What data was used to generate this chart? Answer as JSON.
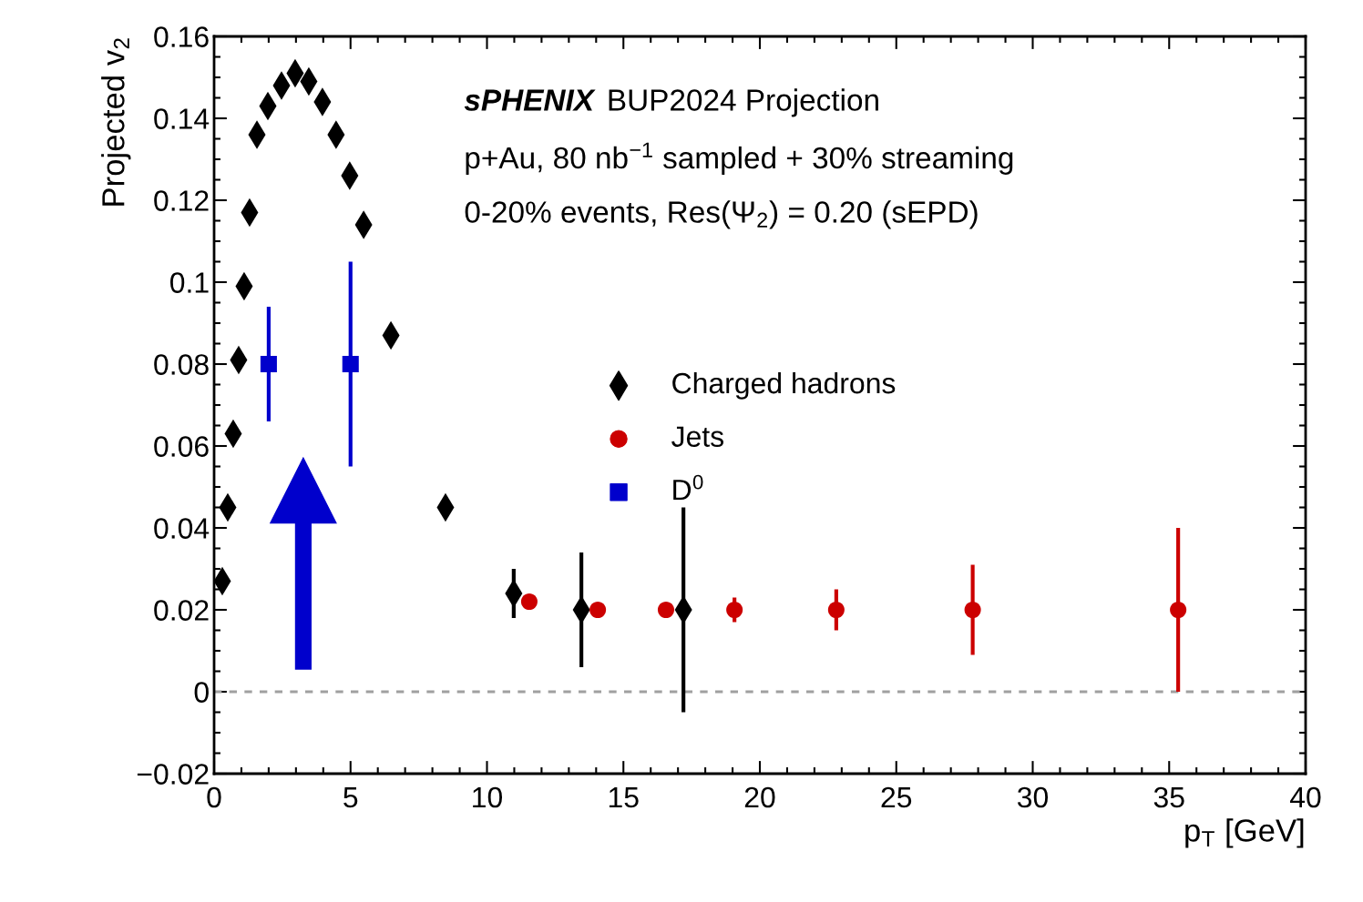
{
  "chart_data": {
    "type": "scatter",
    "xlabel": "p$_{T}$ [GeV]",
    "ylabel": "Projected v$_{2}$",
    "xlim": [
      0,
      40
    ],
    "xticks": [
      0,
      5,
      10,
      15,
      20,
      25,
      30,
      35,
      40
    ],
    "ylim": [
      -0.02,
      0.16
    ],
    "yticks": [
      {
        "value": -0.02,
        "label": "−0.02"
      },
      0,
      0.02,
      0.04,
      0.06,
      0.08,
      0.1,
      0.12,
      0.14,
      0.16
    ],
    "annotations": [
      "sPHENIX",
      "BUP2024 Projection",
      "p+Au, 80 nb$^{−1}$ sampled + 30% streaming",
      "0-20% events, Res(Ψ$_{2}$) = 0.20 (sEPD)"
    ],
    "ref_lines": [
      {
        "axis": "y",
        "value": 0,
        "color": "#a0a0a0",
        "line_style": "dashed"
      }
    ],
    "legend": "right",
    "grid": false,
    "series": [
      {
        "name": "Charged hadrons",
        "color": "#000000",
        "marker": "diamond",
        "x": [
          0.3,
          0.5,
          0.7,
          0.9,
          1.1,
          1.3,
          1.57,
          1.97,
          2.47,
          2.97,
          3.47,
          3.97,
          4.47,
          4.97,
          5.48,
          6.48,
          8.48,
          10.98,
          13.46,
          17.2
        ],
        "values": [
          0.027,
          0.045,
          0.063,
          0.081,
          0.099,
          0.117,
          0.136,
          0.143,
          0.148,
          0.151,
          0.149,
          0.144,
          0.136,
          0.126,
          0.114,
          0.087,
          0.045,
          0.024,
          0.02,
          0.02
        ],
        "errors": [
          null,
          null,
          null,
          null,
          null,
          null,
          null,
          null,
          null,
          null,
          null,
          null,
          null,
          null,
          null,
          null,
          null,
          0.006,
          0.014,
          0.025
        ]
      },
      {
        "name": "Jets",
        "color": "#cc0000",
        "marker": "circle",
        "x": [
          11.55,
          14.06,
          16.56,
          19.07,
          22.8,
          27.8,
          35.33
        ],
        "values": [
          0.022,
          0.02,
          0.02,
          0.02,
          0.02,
          0.02,
          0.02
        ],
        "errors": [
          null,
          null,
          null,
          0.003,
          0.005,
          0.011,
          0.02
        ]
      },
      {
        "name": "D$^{0}$",
        "color": "#0000cc",
        "marker": "square",
        "x": [
          2.0,
          5.0
        ],
        "values": [
          0.08,
          0.08
        ],
        "errors": [
          0.014,
          0.025
        ]
      }
    ]
  }
}
